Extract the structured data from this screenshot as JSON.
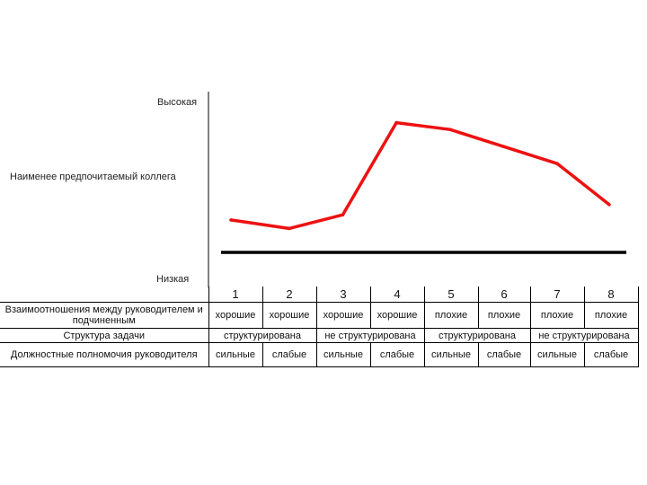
{
  "chart_data": {
    "type": "line",
    "title": "",
    "y_axis_labels": {
      "high": "Высокая",
      "middle": "Наименее предпочитаемый коллега",
      "low": "Низкая"
    },
    "categories": [
      "1",
      "2",
      "3",
      "4",
      "5",
      "6",
      "7",
      "8"
    ],
    "series": [
      {
        "values": [
          0.29,
          0.24,
          0.32,
          0.86,
          0.82,
          0.72,
          0.62,
          0.38
        ],
        "color": "#ee1111"
      }
    ],
    "ylim": [
      0,
      1
    ],
    "reference_line": {
      "value": 0.1,
      "color": "#000000"
    },
    "grid": false
  },
  "table": {
    "rows": [
      {
        "label": "Взаимоотношения между руководителем и подчиненным",
        "cells": [
          {
            "text": "хорошие",
            "span": 1
          },
          {
            "text": "хорошие",
            "span": 1
          },
          {
            "text": "хорошие",
            "span": 1
          },
          {
            "text": "хорошие",
            "span": 1
          },
          {
            "text": "плохие",
            "span": 1
          },
          {
            "text": "плохие",
            "span": 1
          },
          {
            "text": "плохие",
            "span": 1
          },
          {
            "text": "плохие",
            "span": 1
          }
        ]
      },
      {
        "label": "Структура задачи",
        "cells": [
          {
            "text": "структурирована",
            "span": 2
          },
          {
            "text": "не структурирована",
            "span": 2
          },
          {
            "text": "структурирована",
            "span": 2
          },
          {
            "text": "не структурирована",
            "span": 2
          }
        ]
      },
      {
        "label": "Должностные полномочия руководителя",
        "cells": [
          {
            "text": "сильные",
            "span": 1
          },
          {
            "text": "слабые",
            "span": 1
          },
          {
            "text": "сильные",
            "span": 1
          },
          {
            "text": "слабые",
            "span": 1
          },
          {
            "text": "сильные",
            "span": 1
          },
          {
            "text": "слабые",
            "span": 1
          },
          {
            "text": "сильные",
            "span": 1
          },
          {
            "text": "слабые",
            "span": 1
          }
        ]
      }
    ]
  }
}
